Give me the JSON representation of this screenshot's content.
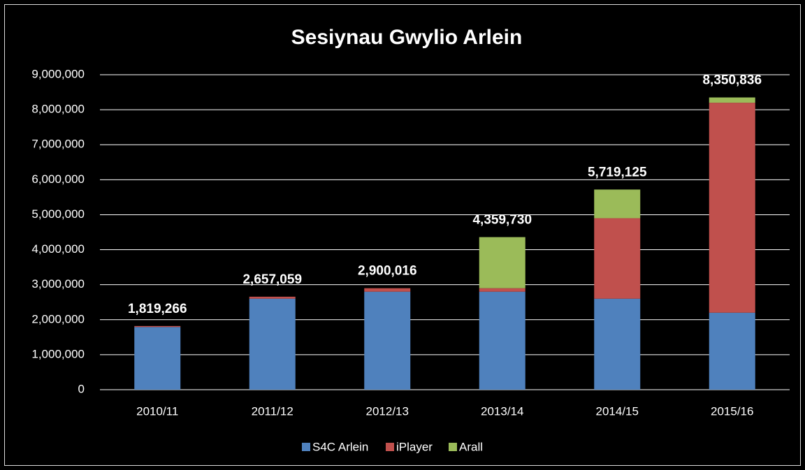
{
  "chart_data": {
    "type": "stacked_bar",
    "title": "Sesiynau Gwylio Arlein",
    "categories": [
      "2010/11",
      "2011/12",
      "2012/13",
      "2013/14",
      "2014/15",
      "2015/16"
    ],
    "series": [
      {
        "name": "S4C Arlein",
        "color": "#4f81bd",
        "values": [
          1790000,
          2600000,
          2800000,
          2800000,
          2600000,
          2200000
        ]
      },
      {
        "name": "iPlayer",
        "color": "#c0504d",
        "values": [
          29266,
          57059,
          100016,
          100000,
          2300000,
          6000000
        ]
      },
      {
        "name": "Arall",
        "color": "#9bbb59",
        "values": [
          0,
          0,
          0,
          1459730,
          819125,
          150836
        ]
      }
    ],
    "totals": [
      1819266,
      2657059,
      2900016,
      4359730,
      5719125,
      8350836
    ],
    "total_labels": [
      "1,819,266",
      "2,657,059",
      "2,900,016",
      "4,359,730",
      "5,719,125",
      "8,350,836"
    ],
    "ylim": [
      0,
      9000000
    ],
    "yticks": [
      0,
      {
        "value": 1000000,
        "label": "1,000,000"
      },
      {
        "value": 2000000,
        "label": "2,000,000"
      },
      {
        "value": 3000000,
        "label": "3,000,000"
      },
      {
        "value": 4000000,
        "label": "4,000,000"
      },
      {
        "value": 5000000,
        "label": "5,000,000"
      },
      {
        "value": 6000000,
        "label": "6,000,000"
      },
      {
        "value": 7000000,
        "label": "7,000,000"
      },
      {
        "value": 8000000,
        "label": "8,000,000"
      },
      {
        "value": 9000000,
        "label": "9,000,000"
      }
    ],
    "grid": true,
    "legend": "bottom"
  }
}
